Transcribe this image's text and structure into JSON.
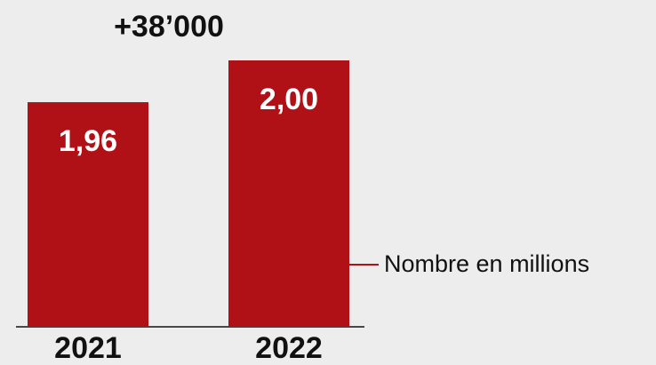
{
  "chart_data": {
    "type": "bar",
    "annotation": "+38’000",
    "categories": [
      "2021",
      "2022"
    ],
    "series": [
      {
        "name": "Nombre en millions",
        "color": "#b01116",
        "values": [
          1.96,
          2.0
        ],
        "value_labels": [
          "1,96",
          "2,00"
        ]
      }
    ],
    "ylim": [
      1.745,
      2.0
    ],
    "yticks": [],
    "grid": false,
    "legend": "right"
  }
}
